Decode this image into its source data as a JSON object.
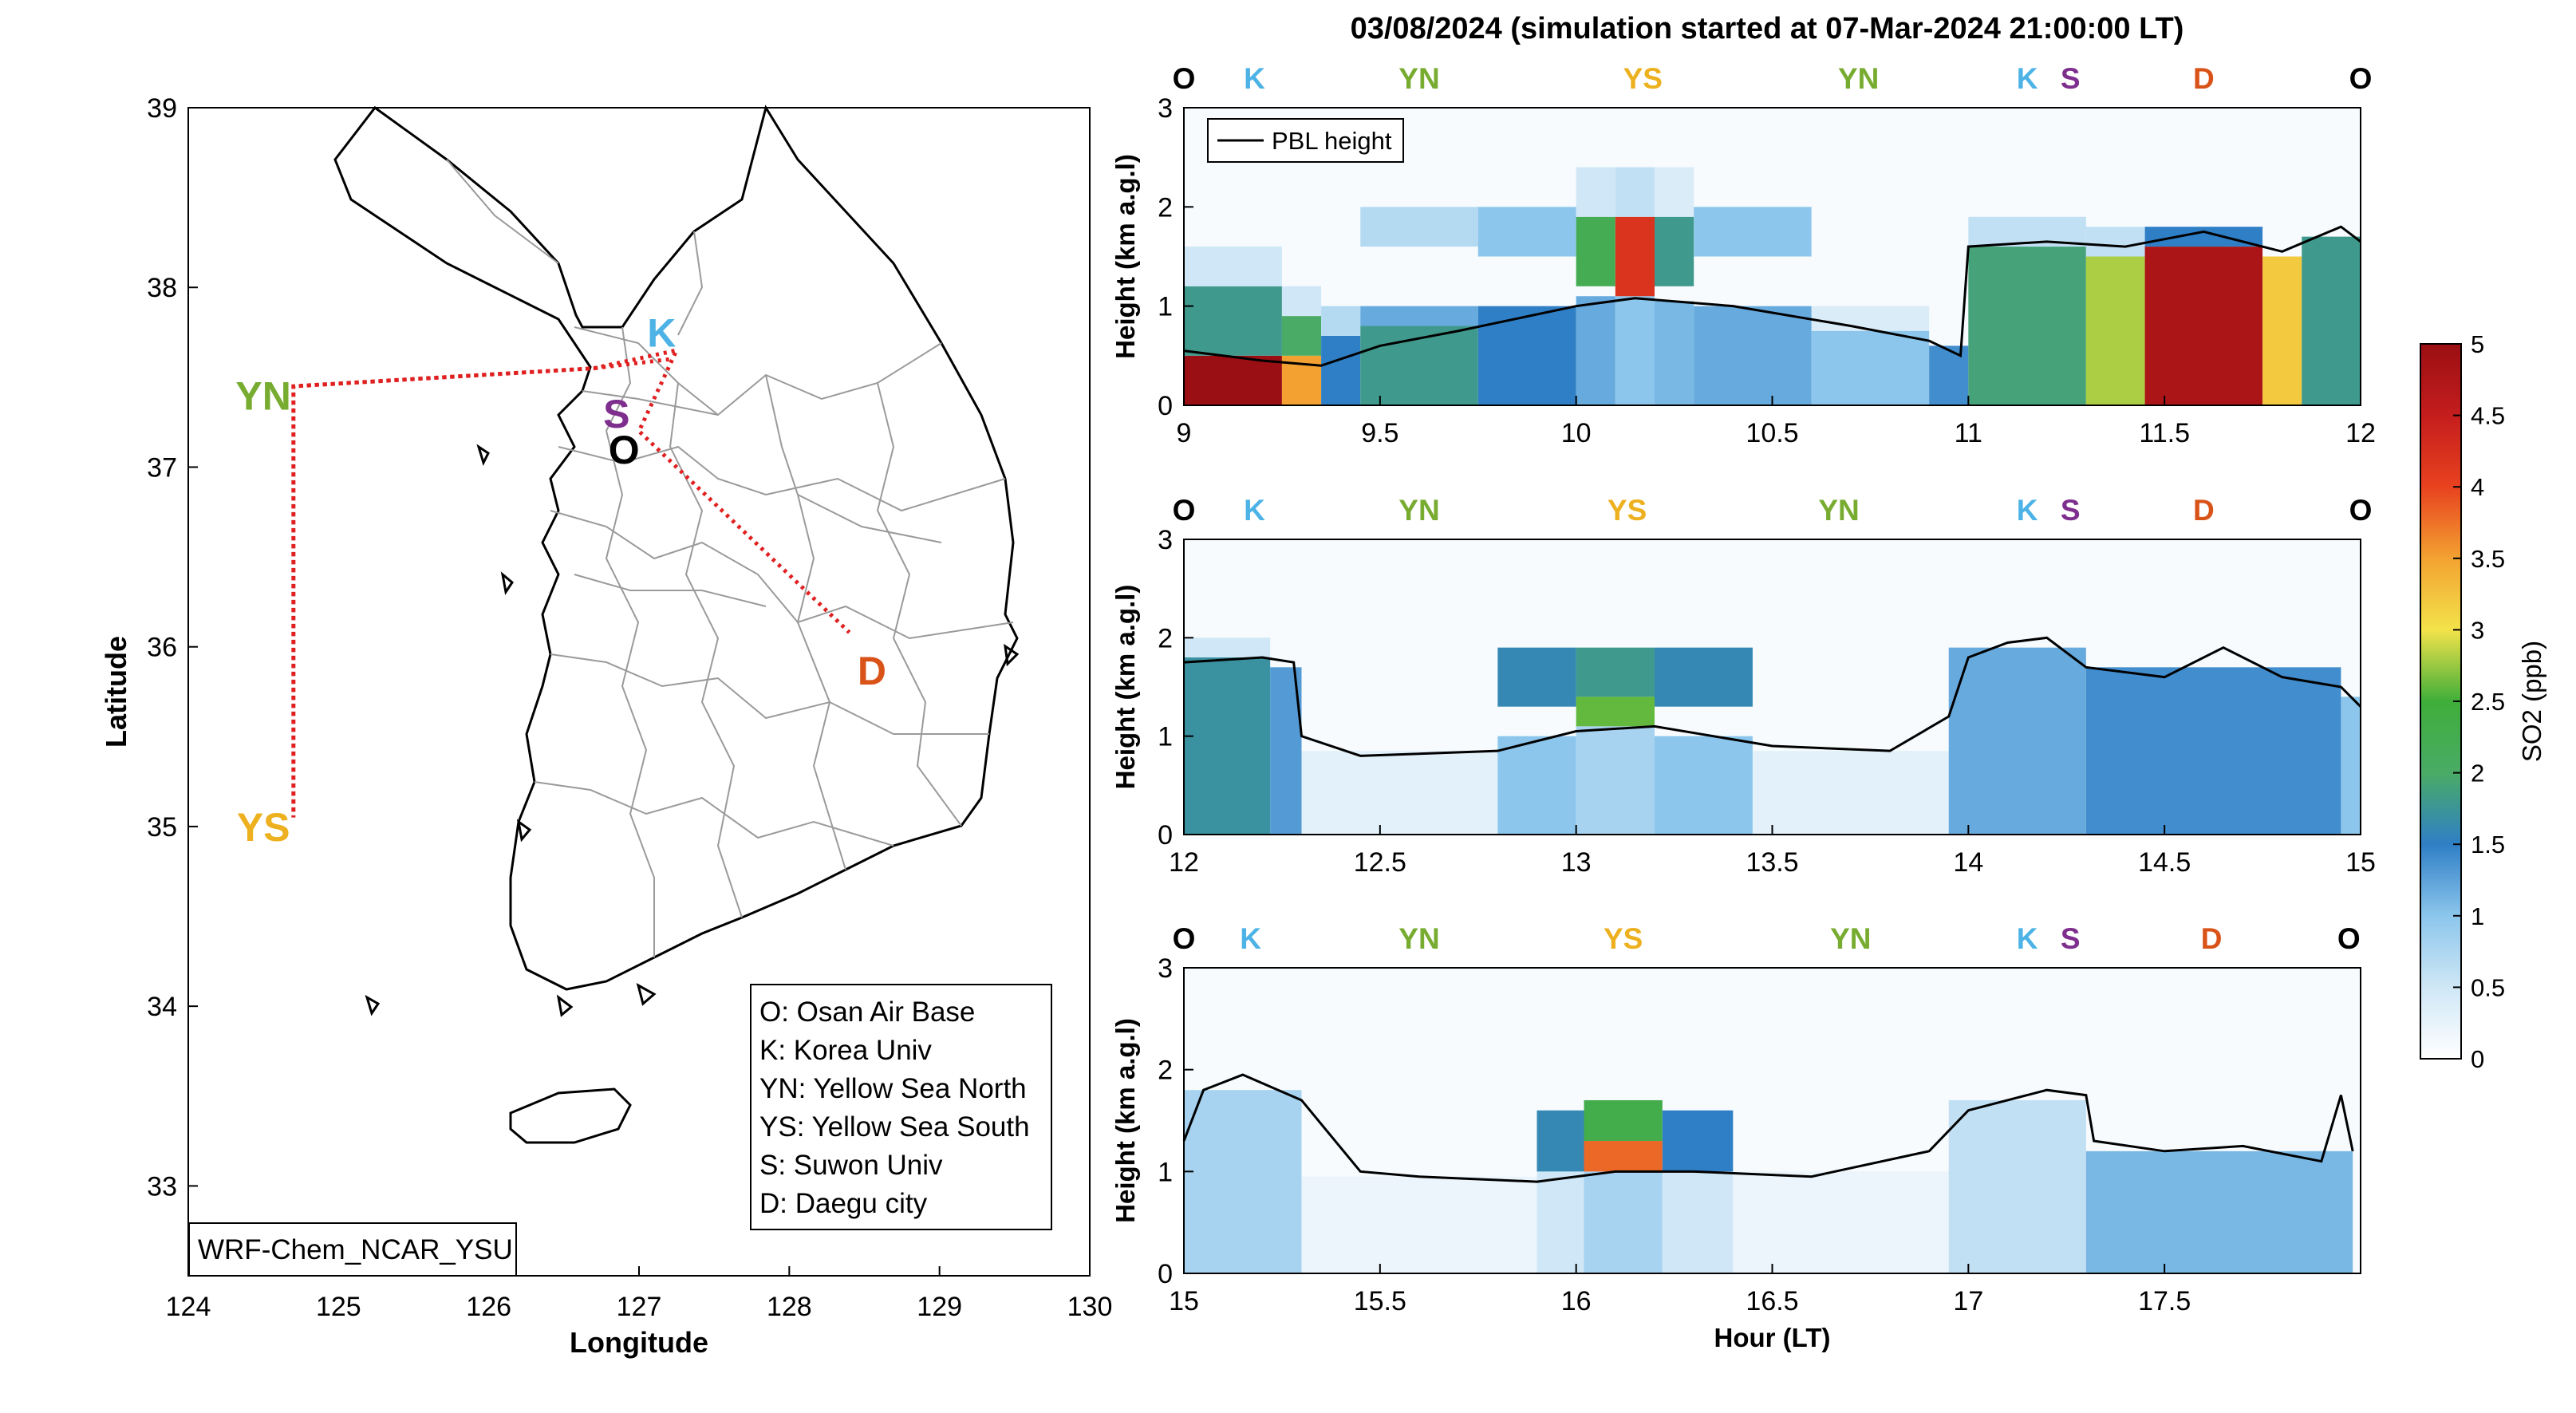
{
  "figure_title": "03/08/2024 (simulation started at 07-Mar-2024 21:00:00 LT)",
  "colors": {
    "O": "#000000",
    "K": "#4db3e6",
    "YN": "#77ac30",
    "YS": "#edb120",
    "S": "#7e2f8e",
    "D": "#d95319",
    "route": "#e02020",
    "pbl": "#000000"
  },
  "chart_data": [
    {
      "type": "map",
      "xlabel": "Longitude",
      "ylabel": "Latitude",
      "xlim": [
        124,
        130
      ],
      "ylim": [
        32.5,
        39
      ],
      "xticks": [
        "124",
        "125",
        "126",
        "127",
        "128",
        "129",
        "130"
      ],
      "yticks": [
        "33",
        "34",
        "35",
        "36",
        "37",
        "38",
        "39"
      ],
      "sites": [
        {
          "code": "O",
          "lon": 126.9,
          "lat": 37.1
        },
        {
          "code": "K",
          "lon": 127.15,
          "lat": 37.75
        },
        {
          "code": "S",
          "lon": 126.85,
          "lat": 37.3
        },
        {
          "code": "YN",
          "lon": 124.5,
          "lat": 37.4
        },
        {
          "code": "YS",
          "lon": 124.5,
          "lat": 35.0
        },
        {
          "code": "D",
          "lon": 128.55,
          "lat": 35.87
        }
      ],
      "route": [
        {
          "lon": 127.2,
          "lat": 37.6
        },
        {
          "lon": 126.7,
          "lat": 37.55
        },
        {
          "lon": 124.7,
          "lat": 37.45
        },
        {
          "lon": 124.7,
          "lat": 35.05
        },
        {
          "lon": 124.7,
          "lat": 37.45
        },
        {
          "lon": 126.7,
          "lat": 37.55
        },
        {
          "lon": 127.25,
          "lat": 37.65
        },
        {
          "lon": 127.0,
          "lat": 37.2
        },
        {
          "lon": 128.4,
          "lat": 36.08
        }
      ],
      "legend": [
        "O: Osan Air Base",
        "K: Korea Univ",
        "YN: Yellow Sea North",
        "YS: Yellow Sea South",
        "S: Suwon Univ",
        "D: Daegu city"
      ],
      "model_label": "WRF-Chem_NCAR_YSU"
    },
    {
      "type": "heatmap",
      "panel": "9-12 LT",
      "xlim": [
        9,
        12
      ],
      "ylim": [
        0,
        3
      ],
      "xticks": [
        "9",
        "9.5",
        "10",
        "10.5",
        "11",
        "11.5",
        "12"
      ],
      "yticks": [
        "0",
        "1",
        "2",
        "3"
      ],
      "ylabel": "Height (km a.g.l)",
      "xlabel": "",
      "legend": [
        "PBL height"
      ],
      "site_labels": [
        {
          "code": "O",
          "x": 9.0
        },
        {
          "code": "K",
          "x": 9.18
        },
        {
          "code": "YN",
          "x": 9.6
        },
        {
          "code": "YS",
          "x": 10.17
        },
        {
          "code": "YN",
          "x": 10.72
        },
        {
          "code": "K",
          "x": 11.15
        },
        {
          "code": "S",
          "x": 11.26
        },
        {
          "code": "D",
          "x": 11.6
        },
        {
          "code": "O",
          "x": 12.0
        }
      ],
      "pbl": [
        [
          9.0,
          0.55
        ],
        [
          9.2,
          0.45
        ],
        [
          9.35,
          0.4
        ],
        [
          9.5,
          0.6
        ],
        [
          9.7,
          0.75
        ],
        [
          10.0,
          1.0
        ],
        [
          10.15,
          1.08
        ],
        [
          10.4,
          1.0
        ],
        [
          10.7,
          0.8
        ],
        [
          10.9,
          0.65
        ],
        [
          10.98,
          0.5
        ],
        [
          11.0,
          1.6
        ],
        [
          11.2,
          1.65
        ],
        [
          11.4,
          1.6
        ],
        [
          11.6,
          1.75
        ],
        [
          11.8,
          1.55
        ],
        [
          11.95,
          1.8
        ],
        [
          12.0,
          1.65
        ]
      ],
      "so2_columns": [
        {
          "x0": 9.0,
          "x1": 9.25,
          "layers": [
            [
              0,
              0.5,
              5
            ],
            [
              0.5,
              1.2,
              1.8
            ],
            [
              1.2,
              1.6,
              0.5
            ]
          ]
        },
        {
          "x0": 9.25,
          "x1": 9.35,
          "layers": [
            [
              0,
              0.5,
              3.5
            ],
            [
              0.5,
              0.9,
              2
            ],
            [
              0.9,
              1.2,
              0.5
            ]
          ]
        },
        {
          "x0": 9.35,
          "x1": 9.45,
          "layers": [
            [
              0,
              0.7,
              1.5
            ],
            [
              0.7,
              1.0,
              0.7
            ]
          ]
        },
        {
          "x0": 9.45,
          "x1": 9.75,
          "layers": [
            [
              0,
              0.8,
              1.8
            ],
            [
              0.8,
              1.0,
              1.2
            ],
            [
              1.6,
              2.0,
              0.7
            ]
          ]
        },
        {
          "x0": 9.75,
          "x1": 10.0,
          "layers": [
            [
              0,
              1.0,
              1.5
            ],
            [
              1.5,
              2.0,
              1.0
            ]
          ]
        },
        {
          "x0": 10.0,
          "x1": 10.1,
          "layers": [
            [
              0,
              1.1,
              1.2
            ],
            [
              1.2,
              1.9,
              2.2
            ],
            [
              1.9,
              2.4,
              0.5
            ]
          ]
        },
        {
          "x0": 10.1,
          "x1": 10.2,
          "layers": [
            [
              0,
              1.1,
              1.0
            ],
            [
              1.1,
              1.9,
              4.2
            ],
            [
              1.9,
              2.4,
              0.6
            ]
          ]
        },
        {
          "x0": 10.2,
          "x1": 10.3,
          "layers": [
            [
              0,
              1.05,
              1.1
            ],
            [
              1.2,
              1.9,
              1.8
            ],
            [
              1.9,
              2.4,
              0.4
            ]
          ]
        },
        {
          "x0": 10.3,
          "x1": 10.6,
          "layers": [
            [
              0,
              1.0,
              1.2
            ],
            [
              1.5,
              2.0,
              1.0
            ]
          ]
        },
        {
          "x0": 10.6,
          "x1": 10.9,
          "layers": [
            [
              0,
              0.75,
              1.0
            ],
            [
              0.75,
              1.0,
              0.4
            ]
          ]
        },
        {
          "x0": 10.9,
          "x1": 11.0,
          "layers": [
            [
              0,
              0.6,
              1.4
            ]
          ]
        },
        {
          "x0": 11.0,
          "x1": 11.3,
          "layers": [
            [
              0,
              1.6,
              1.9
            ],
            [
              1.6,
              1.9,
              0.6
            ]
          ]
        },
        {
          "x0": 11.3,
          "x1": 11.45,
          "layers": [
            [
              0,
              1.5,
              2.8
            ],
            [
              1.5,
              1.8,
              0.6
            ]
          ]
        },
        {
          "x0": 11.45,
          "x1": 11.75,
          "layers": [
            [
              0,
              1.6,
              4.8
            ],
            [
              1.6,
              1.8,
              1.5
            ]
          ]
        },
        {
          "x0": 11.75,
          "x1": 11.85,
          "layers": [
            [
              0,
              1.5,
              3.2
            ]
          ]
        },
        {
          "x0": 11.85,
          "x1": 12.0,
          "layers": [
            [
              0,
              1.7,
              1.8
            ]
          ]
        }
      ]
    },
    {
      "type": "heatmap",
      "panel": "12-15 LT",
      "xlim": [
        12,
        15
      ],
      "ylim": [
        0,
        3
      ],
      "xticks": [
        "12",
        "12.5",
        "13",
        "13.5",
        "14",
        "14.5",
        "15"
      ],
      "yticks": [
        "0",
        "1",
        "2",
        "3"
      ],
      "ylabel": "Height (km a.g.l)",
      "xlabel": "",
      "site_labels": [
        {
          "code": "O",
          "x": 12.0
        },
        {
          "code": "K",
          "x": 12.18
        },
        {
          "code": "YN",
          "x": 12.6
        },
        {
          "code": "YS",
          "x": 13.13
        },
        {
          "code": "YN",
          "x": 13.67
        },
        {
          "code": "K",
          "x": 14.15
        },
        {
          "code": "S",
          "x": 14.26
        },
        {
          "code": "D",
          "x": 14.6
        },
        {
          "code": "O",
          "x": 15.0
        }
      ],
      "pbl": [
        [
          12.0,
          1.75
        ],
        [
          12.2,
          1.8
        ],
        [
          12.28,
          1.75
        ],
        [
          12.3,
          1.0
        ],
        [
          12.45,
          0.8
        ],
        [
          12.8,
          0.85
        ],
        [
          13.0,
          1.05
        ],
        [
          13.2,
          1.1
        ],
        [
          13.5,
          0.9
        ],
        [
          13.8,
          0.85
        ],
        [
          13.95,
          1.2
        ],
        [
          14.0,
          1.8
        ],
        [
          14.1,
          1.95
        ],
        [
          14.2,
          2.0
        ],
        [
          14.3,
          1.7
        ],
        [
          14.5,
          1.6
        ],
        [
          14.65,
          1.9
        ],
        [
          14.8,
          1.6
        ],
        [
          14.95,
          1.5
        ],
        [
          15.0,
          1.3
        ]
      ],
      "so2_columns": [
        {
          "x0": 12.0,
          "x1": 12.22,
          "layers": [
            [
              0,
              1.8,
              1.7
            ],
            [
              1.8,
              2.0,
              0.5
            ]
          ]
        },
        {
          "x0": 12.22,
          "x1": 12.3,
          "layers": [
            [
              0,
              1.7,
              1.3
            ]
          ]
        },
        {
          "x0": 12.3,
          "x1": 12.8,
          "layers": [
            [
              0,
              0.85,
              0.3
            ]
          ]
        },
        {
          "x0": 12.8,
          "x1": 13.0,
          "layers": [
            [
              0,
              1.0,
              1.0
            ],
            [
              1.3,
              1.9,
              1.6
            ]
          ]
        },
        {
          "x0": 13.0,
          "x1": 13.2,
          "layers": [
            [
              0,
              1.1,
              0.8
            ],
            [
              1.1,
              1.4,
              2.6
            ],
            [
              1.4,
              1.9,
              1.8
            ]
          ]
        },
        {
          "x0": 13.2,
          "x1": 13.45,
          "layers": [
            [
              0,
              1.0,
              1.0
            ],
            [
              1.3,
              1.9,
              1.6
            ]
          ]
        },
        {
          "x0": 13.45,
          "x1": 13.95,
          "layers": [
            [
              0,
              0.85,
              0.3
            ]
          ]
        },
        {
          "x0": 13.95,
          "x1": 14.3,
          "layers": [
            [
              0,
              1.9,
              1.2
            ]
          ]
        },
        {
          "x0": 14.3,
          "x1": 14.95,
          "layers": [
            [
              0,
              1.7,
              1.4
            ]
          ]
        },
        {
          "x0": 14.95,
          "x1": 15.0,
          "layers": [
            [
              0,
              1.4,
              1.0
            ]
          ]
        }
      ]
    },
    {
      "type": "heatmap",
      "panel": "15-18 LT",
      "xlim": [
        15,
        18
      ],
      "ylim": [
        0,
        3
      ],
      "xticks": [
        "15",
        "15.5",
        "16",
        "16.5",
        "17",
        "17.5"
      ],
      "yticks": [
        "0",
        "1",
        "2",
        "3"
      ],
      "ylabel": "Height (km a.g.l)",
      "xlabel": "Hour (LT)",
      "site_labels": [
        {
          "code": "O",
          "x": 15.0
        },
        {
          "code": "K",
          "x": 15.17
        },
        {
          "code": "YN",
          "x": 15.6
        },
        {
          "code": "YS",
          "x": 16.12
        },
        {
          "code": "YN",
          "x": 16.7
        },
        {
          "code": "K",
          "x": 17.15
        },
        {
          "code": "S",
          "x": 17.26
        },
        {
          "code": "D",
          "x": 17.62
        },
        {
          "code": "O",
          "x": 17.97
        }
      ],
      "pbl": [
        [
          15.0,
          1.3
        ],
        [
          15.05,
          1.8
        ],
        [
          15.15,
          1.95
        ],
        [
          15.3,
          1.7
        ],
        [
          15.45,
          1.0
        ],
        [
          15.6,
          0.95
        ],
        [
          15.9,
          0.9
        ],
        [
          16.1,
          1.0
        ],
        [
          16.3,
          1.0
        ],
        [
          16.6,
          0.95
        ],
        [
          16.9,
          1.2
        ],
        [
          17.0,
          1.6
        ],
        [
          17.2,
          1.8
        ],
        [
          17.3,
          1.75
        ],
        [
          17.32,
          1.3
        ],
        [
          17.5,
          1.2
        ],
        [
          17.7,
          1.25
        ],
        [
          17.9,
          1.1
        ],
        [
          17.95,
          1.75
        ],
        [
          17.98,
          1.2
        ]
      ],
      "so2_columns": [
        {
          "x0": 15.0,
          "x1": 15.3,
          "layers": [
            [
              0,
              1.8,
              0.8
            ]
          ]
        },
        {
          "x0": 15.3,
          "x1": 15.9,
          "layers": [
            [
              0,
              0.95,
              0.2
            ]
          ]
        },
        {
          "x0": 15.9,
          "x1": 16.02,
          "layers": [
            [
              0,
              1.0,
              0.5
            ],
            [
              1.0,
              1.6,
              1.6
            ]
          ]
        },
        {
          "x0": 16.02,
          "x1": 16.22,
          "layers": [
            [
              0,
              1.0,
              0.8
            ],
            [
              1.0,
              1.3,
              3.8
            ],
            [
              1.3,
              1.7,
              2.3
            ]
          ]
        },
        {
          "x0": 16.22,
          "x1": 16.4,
          "layers": [
            [
              0,
              1.0,
              0.5
            ],
            [
              1.0,
              1.6,
              1.5
            ]
          ]
        },
        {
          "x0": 16.4,
          "x1": 16.95,
          "layers": [
            [
              0,
              1.0,
              0.2
            ]
          ]
        },
        {
          "x0": 16.95,
          "x1": 17.3,
          "layers": [
            [
              0,
              1.7,
              0.6
            ]
          ]
        },
        {
          "x0": 17.3,
          "x1": 17.98,
          "layers": [
            [
              0,
              1.2,
              1.1
            ]
          ]
        }
      ]
    },
    {
      "type": "colorbar",
      "label": "SO2 (ppb)",
      "range": [
        0,
        5
      ],
      "ticks": [
        "0",
        "0.5",
        "1",
        "1.5",
        "2",
        "2.5",
        "3",
        "3.5",
        "4",
        "4.5",
        "5"
      ]
    }
  ]
}
